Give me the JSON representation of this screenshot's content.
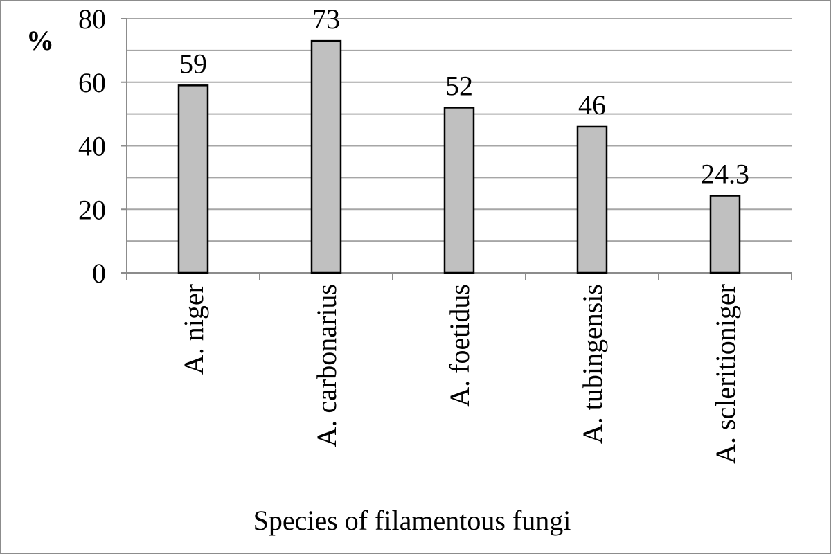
{
  "chart_data": {
    "type": "bar",
    "x_label": "Species of filamentous fungi",
    "y_label": "%",
    "categories": [
      "A. niger",
      "A. carbonarius",
      "A. foetidus",
      "A. tubingensis",
      "A. scleritioniger"
    ],
    "values": [
      59,
      73,
      52,
      46,
      24.3
    ],
    "color": "#c0c0c0",
    "ylim": [
      0,
      80
    ],
    "yticks": [
      0,
      20,
      40,
      60,
      80
    ],
    "minor_yticks": [
      10,
      30,
      50,
      70
    ],
    "grid": true
  }
}
